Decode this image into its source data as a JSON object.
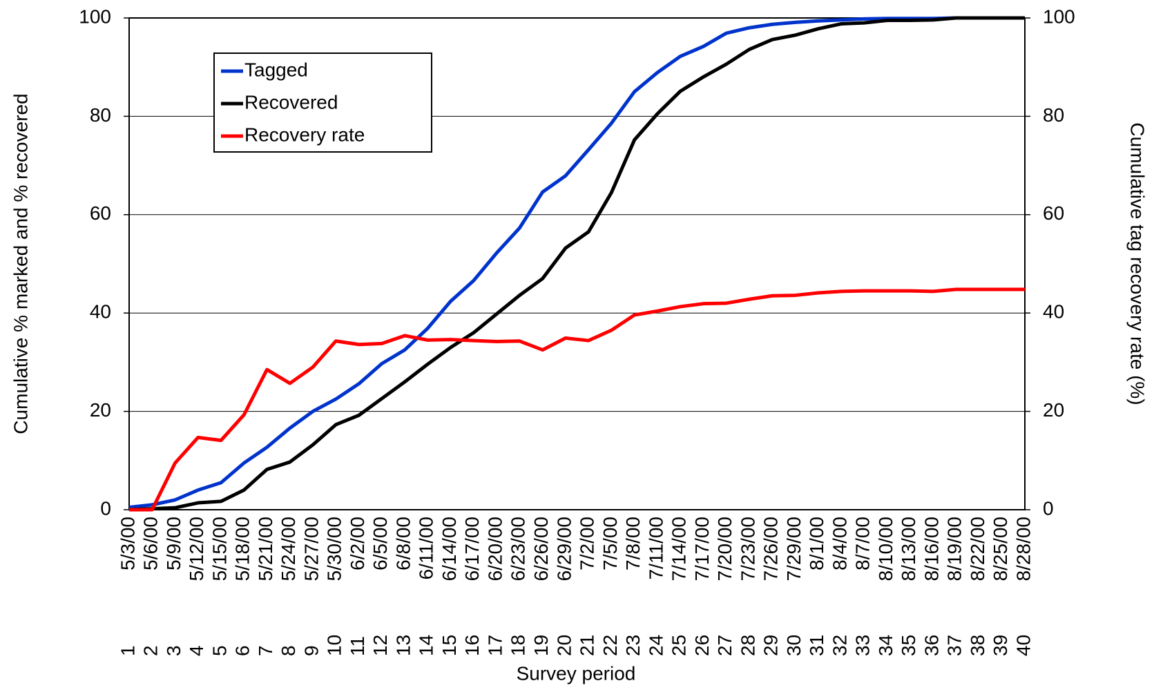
{
  "chart_data": {
    "type": "line",
    "x_label": "Survey period",
    "y_label": "Cumulative % marked and % recovered",
    "y2_label": "Cumulative tag recovery rate (%)",
    "categories": [
      "5/3/00",
      "5/6/00",
      "5/9/00",
      "5/12/00",
      "5/15/00",
      "5/18/00",
      "5/21/00",
      "5/24/00",
      "5/27/00",
      "5/30/00",
      "6/2/00",
      "6/5/00",
      "6/8/00",
      "6/11/00",
      "6/14/00",
      "6/17/00",
      "6/20/00",
      "6/23/00",
      "6/26/00",
      "6/29/00",
      "7/2/00",
      "7/5/00",
      "7/8/00",
      "7/11/00",
      "7/14/00",
      "7/17/00",
      "7/20/00",
      "7/23/00",
      "7/26/00",
      "7/29/00",
      "8/1/00",
      "8/4/00",
      "8/7/00",
      "8/10/00",
      "8/13/00",
      "8/16/00",
      "8/19/00",
      "8/22/00",
      "8/25/00",
      "8/28/00"
    ],
    "periods": [
      1,
      2,
      3,
      4,
      5,
      6,
      7,
      8,
      9,
      10,
      11,
      12,
      13,
      14,
      15,
      16,
      17,
      18,
      19,
      20,
      21,
      22,
      23,
      24,
      25,
      26,
      27,
      28,
      29,
      30,
      31,
      32,
      33,
      34,
      35,
      36,
      37,
      38,
      39,
      40
    ],
    "series": [
      {
        "name": "Tagged",
        "color": "#0033cc",
        "values": [
          0.5,
          1,
          2,
          4,
          5.5,
          9.5,
          12.7,
          16.6,
          20,
          22.5,
          25.6,
          29.7,
          32.5,
          36.9,
          42.4,
          46.6,
          52.2,
          57.3,
          64.6,
          67.9,
          73.2,
          78.6,
          85,
          88.9,
          92.2,
          94.2,
          96.9,
          98,
          98.7,
          99.1,
          99.4,
          99.6,
          99.8,
          99.9,
          99.9,
          99.9,
          100,
          100,
          100,
          100
        ]
      },
      {
        "name": "Recovered",
        "color": "#000000",
        "values": [
          0,
          0.2,
          0.4,
          1.4,
          1.7,
          4,
          8.2,
          9.7,
          13.2,
          17.3,
          19.2,
          22.6,
          26,
          29.6,
          33,
          36,
          39.8,
          43.6,
          47,
          53.2,
          56.5,
          64.5,
          75.2,
          80.5,
          85.1,
          88,
          90.6,
          93.6,
          95.6,
          96.5,
          97.8,
          98.8,
          99,
          99.5,
          99.5,
          99.6,
          100,
          100,
          100,
          100
        ]
      },
      {
        "name": "Recovery rate",
        "color": "#ff0000",
        "axis": "y2",
        "values": [
          0,
          0,
          9.5,
          14.7,
          14.1,
          19.3,
          28.5,
          25.7,
          29,
          34.3,
          33.6,
          33.8,
          35.4,
          34.5,
          34.6,
          34.4,
          34.2,
          34.3,
          32.5,
          34.9,
          34.4,
          36.5,
          39.6,
          40.4,
          41.3,
          41.9,
          42,
          42.8,
          43.5,
          43.6,
          44.1,
          44.4,
          44.5,
          44.5,
          44.5,
          44.4,
          44.8,
          44.8,
          44.8,
          44.8
        ]
      }
    ],
    "ylim": [
      0,
      100
    ],
    "yticks": [
      0,
      20,
      40,
      60,
      80,
      100
    ],
    "y2lim": [
      0,
      100
    ],
    "y2ticks": [
      0,
      20,
      40,
      60,
      80,
      100
    ],
    "grid": true,
    "legend": "upper left"
  }
}
